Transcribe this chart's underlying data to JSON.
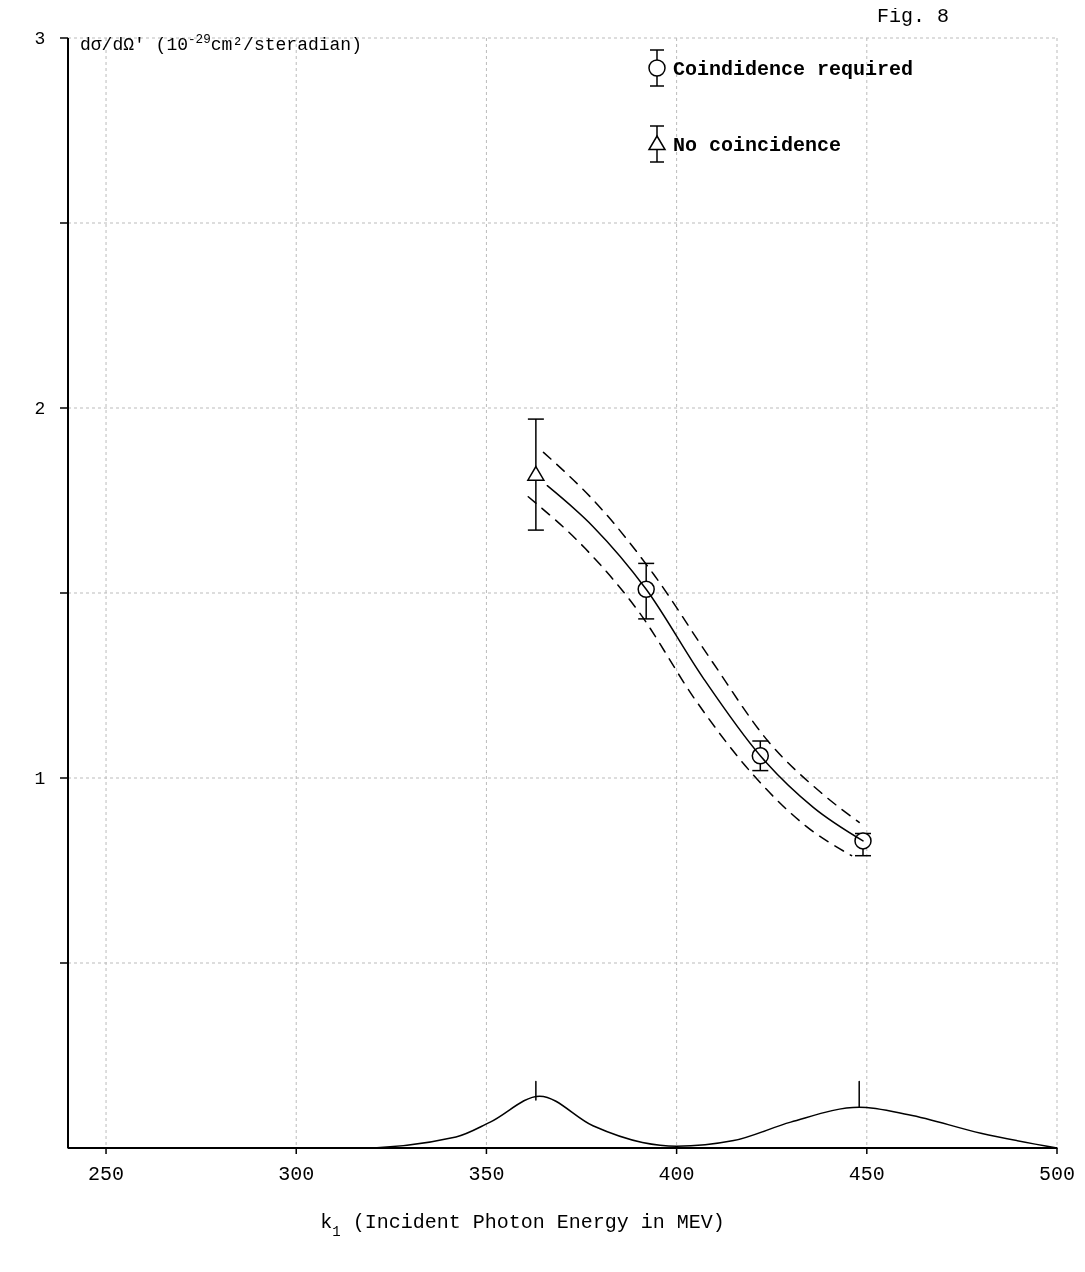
{
  "chart_data": {
    "type": "scatter",
    "title": "Fig. 8",
    "xlabel": "k$_{1}$ (Incident Photon Energy in MEV)",
    "ylabel": "dσ/dΩ′ (10$^{-29}$cm²/steradian)",
    "xlim": [
      240,
      500
    ],
    "xticks": [
      250,
      300,
      350,
      400,
      450,
      500
    ],
    "ylim": [
      0,
      3
    ],
    "yticks": [
      {
        "value": 0.5,
        "label": null
      },
      1,
      {
        "value": 1.5,
        "label": null
      },
      2,
      {
        "value": 2.5,
        "label": null
      },
      3
    ],
    "grid": true,
    "legend": "top right",
    "series": [
      {
        "name": "Coindidence required",
        "marker": "circle",
        "color": "#000000",
        "x": [
          392,
          422,
          449
        ],
        "values": [
          1.51,
          1.06,
          0.83
        ],
        "errors": [
          [
            1.43,
            1.58
          ],
          [
            1.02,
            1.1
          ],
          [
            0.79,
            0.85
          ]
        ]
      },
      {
        "name": "No coincidence",
        "marker": "triangle",
        "color": "#000000",
        "x": [
          363
        ],
        "values": [
          1.82
        ],
        "errors": [
          [
            1.67,
            1.97
          ]
        ]
      },
      {
        "type": "line",
        "color": "#000000",
        "line_style": "solid",
        "x": [
          366,
          378,
          392,
          407,
          422,
          436,
          449
        ],
        "values": [
          1.79,
          1.68,
          1.51,
          1.27,
          1.06,
          0.92,
          0.83
        ]
      },
      {
        "type": "line",
        "color": "#000000",
        "line_style": "dashed",
        "x": [
          365,
          380,
          394,
          409,
          424,
          438,
          448
        ],
        "values": [
          1.88,
          1.73,
          1.55,
          1.32,
          1.1,
          0.96,
          0.88
        ]
      },
      {
        "type": "line",
        "color": "#000000",
        "line_style": "dashed",
        "x": [
          361,
          376,
          390,
          405,
          420,
          434,
          446
        ],
        "values": [
          1.76,
          1.62,
          1.45,
          1.21,
          1.01,
          0.87,
          0.79
        ]
      },
      {
        "type": "line",
        "color": "#000000",
        "line_style": "solid",
        "x": [
          240,
          316,
          342,
          351,
          364,
          378,
          391,
          400,
          415,
          430,
          448,
          461,
          480,
          500
        ],
        "values": [
          0,
          0,
          0.03,
          0.07,
          0.14,
          0.06,
          0.015,
          0.005,
          0.02,
          0.07,
          0.11,
          0.09,
          0.04,
          0
        ]
      },
      {
        "type": "line",
        "color": "#000000",
        "line_style": "solid",
        "x": [
          363,
          363,
          405,
          448,
          448
        ],
        "values": [
          0.13,
          0.18,
          null,
          0.11,
          0.18
        ]
      }
    ]
  }
}
